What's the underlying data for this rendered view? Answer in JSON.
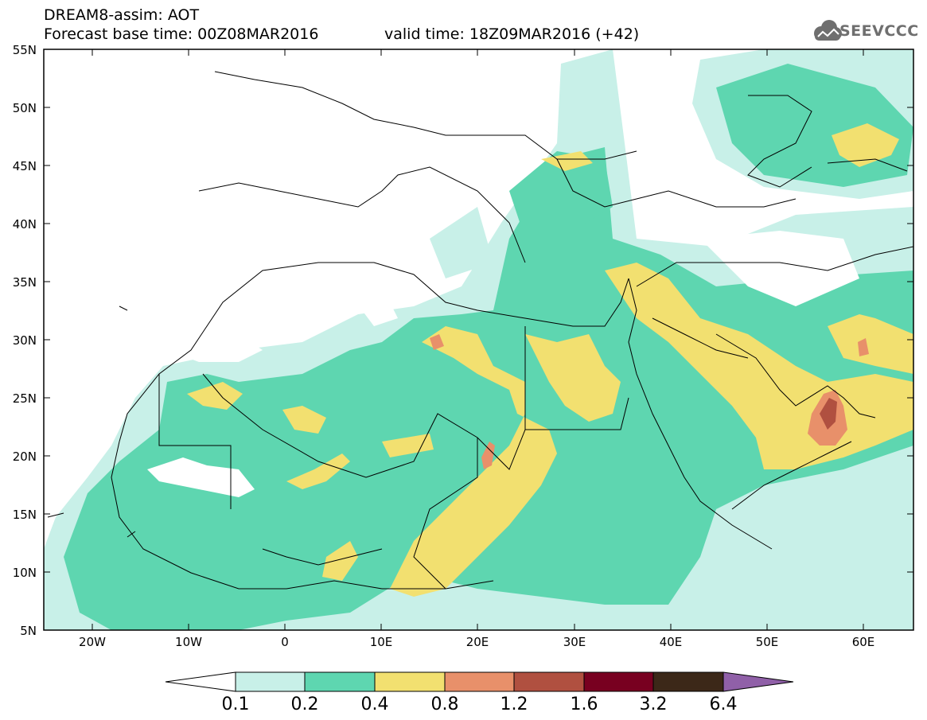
{
  "header": {
    "title": "DREAM8-assim: AOT",
    "base_time": "Forecast base time: 00Z08MAR2016",
    "valid_time": "valid time: 18Z09MAR2016 (+42)"
  },
  "logo": {
    "text": "SEEVCCC",
    "icon": "cloud-icon"
  },
  "axes": {
    "lat_labels": [
      "55N",
      "50N",
      "45N",
      "40N",
      "35N",
      "30N",
      "25N",
      "20N",
      "15N",
      "10N",
      "5N"
    ],
    "lon_labels": [
      "20W",
      "10W",
      "0",
      "10E",
      "20E",
      "30E",
      "40E",
      "50E",
      "60E"
    ],
    "lat_range": [
      5,
      55
    ],
    "lon_range": [
      -25,
      65
    ]
  },
  "colorbar": {
    "labels": [
      "0.1",
      "0.2",
      "0.4",
      "0.8",
      "1.2",
      "1.6",
      "3.2",
      "6.4"
    ],
    "colors": [
      "#c8f0e8",
      "#5ed6b0",
      "#f2e070",
      "#e8906a",
      "#b05040",
      "#780020",
      "#3c2818",
      "#9060a8"
    ]
  }
}
